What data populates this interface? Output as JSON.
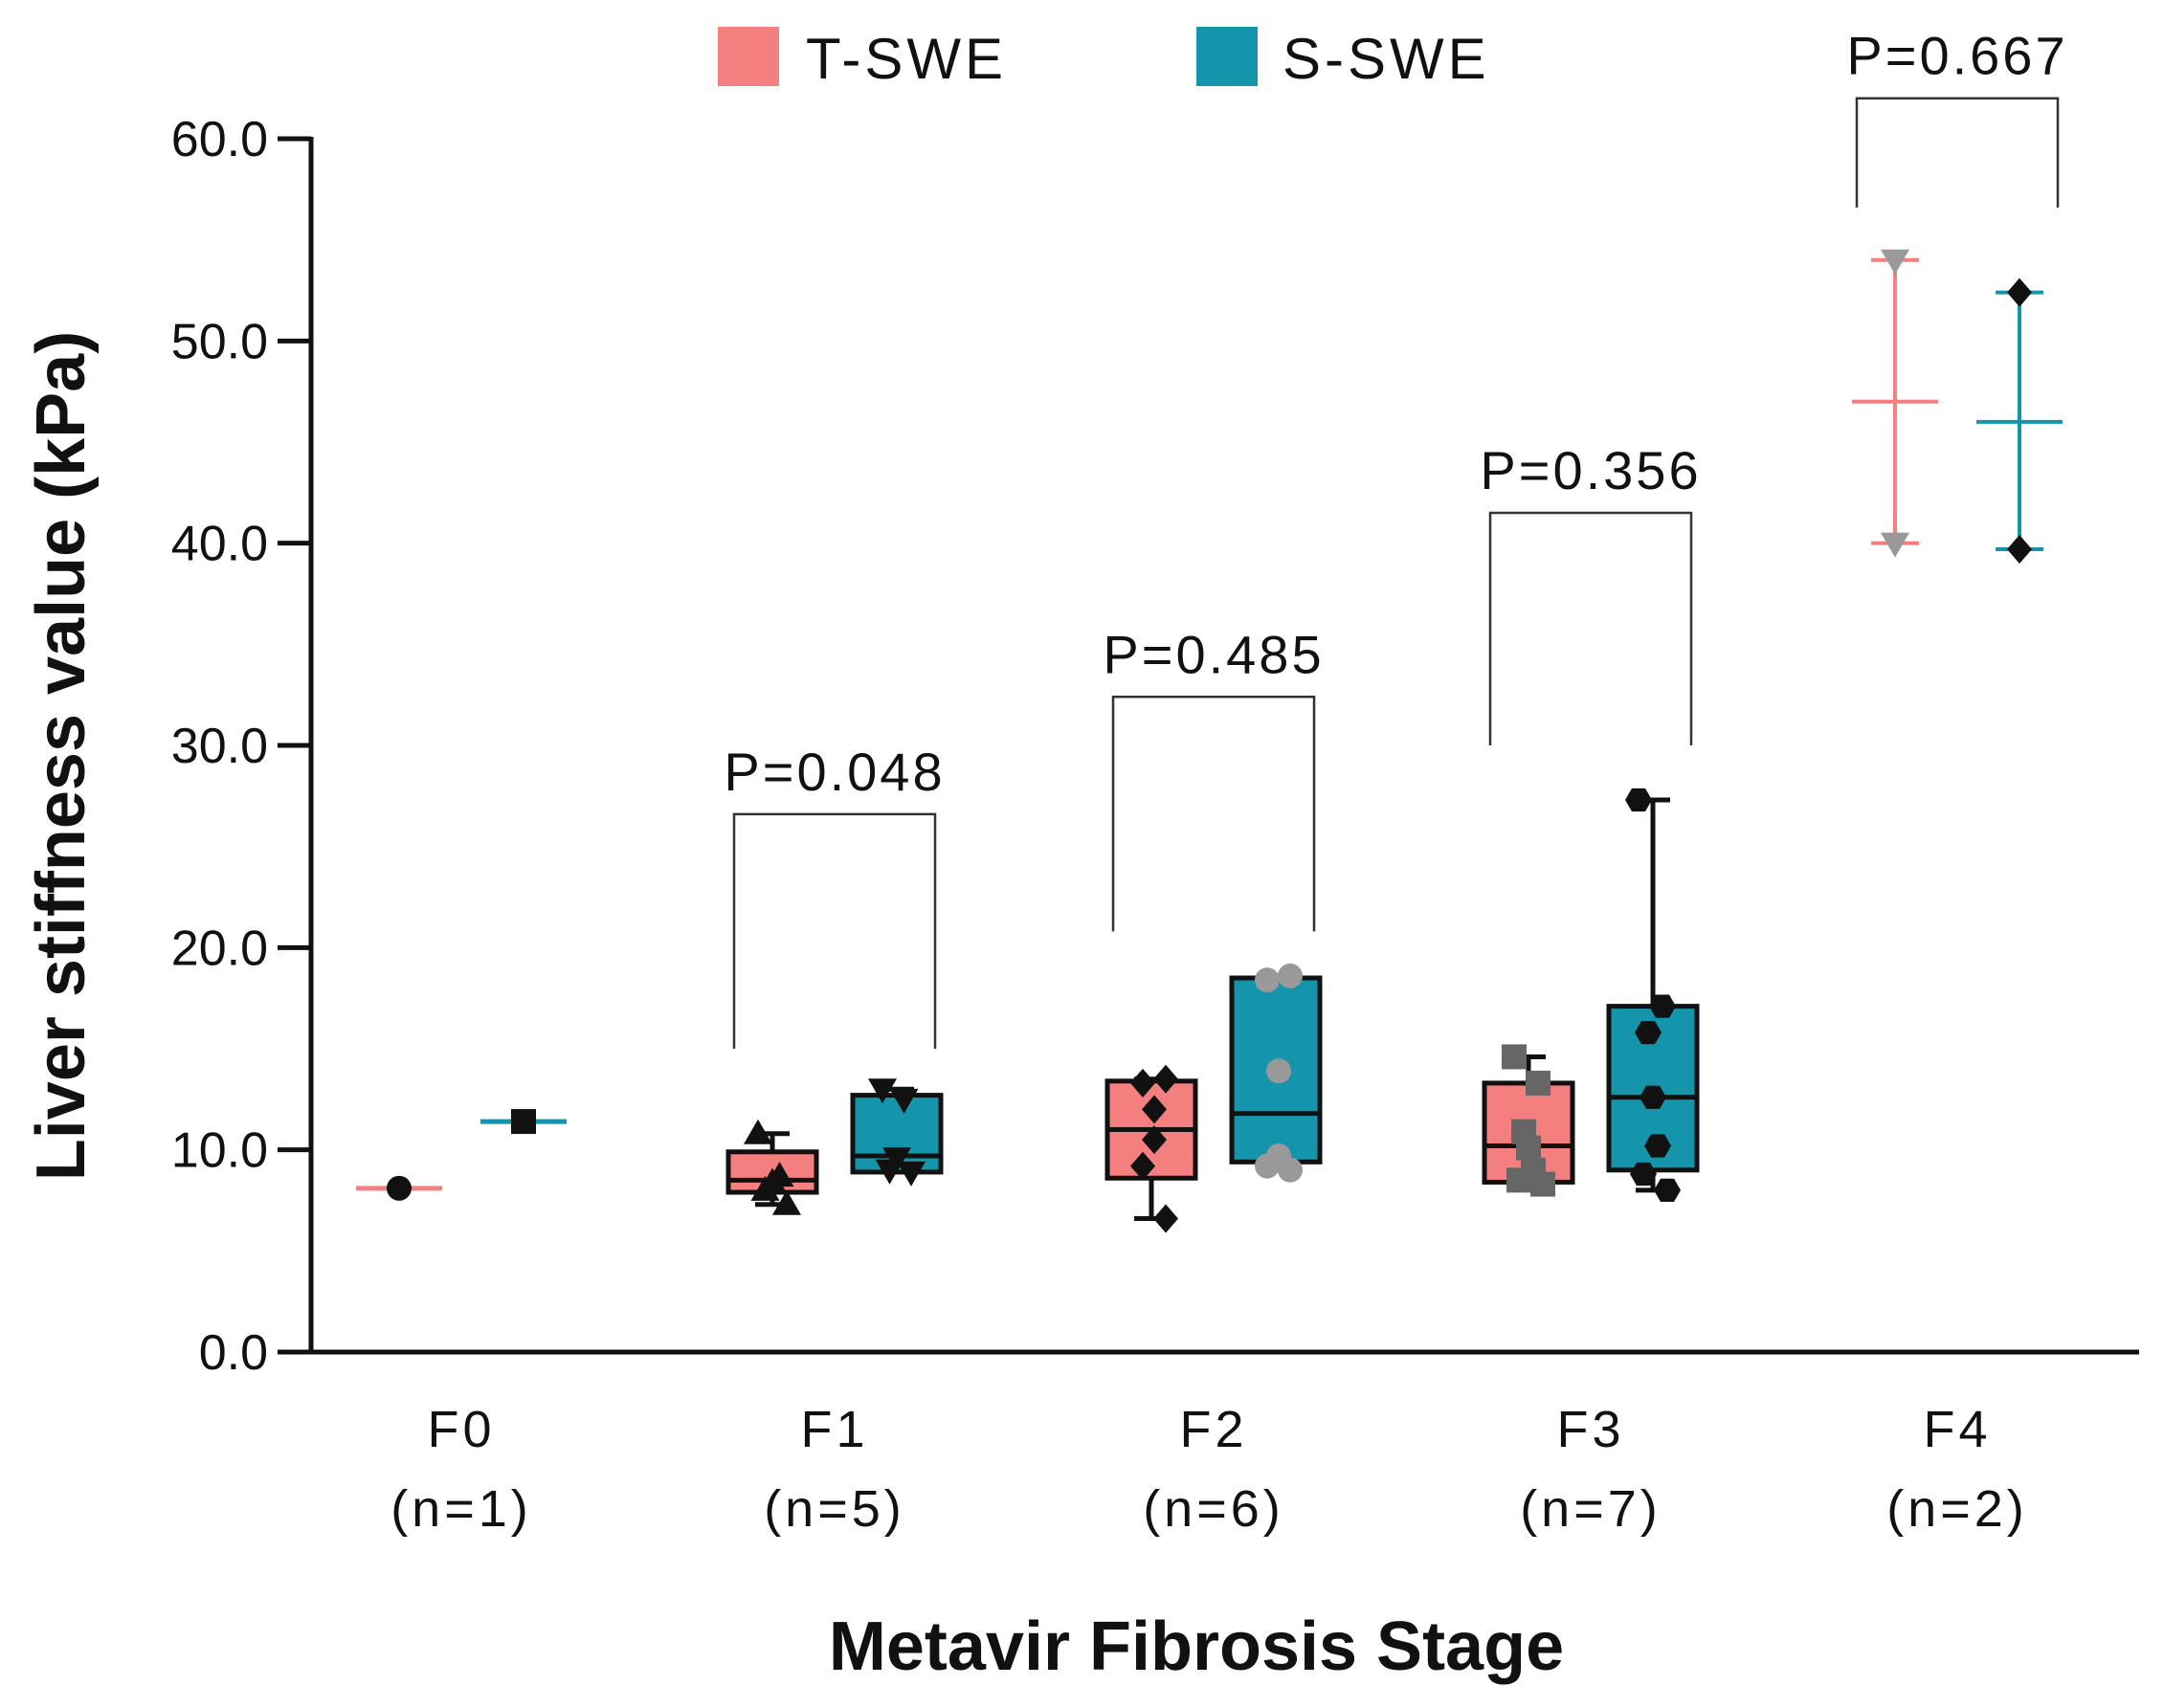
{
  "chart_data": {
    "type": "box",
    "title": "",
    "xlabel": "Metavir Fibrosis Stage",
    "ylabel": "Liver stiffness value (kPa)",
    "ylim": [
      0,
      60
    ],
    "yticks": [
      "0.0",
      "10.0",
      "20.0",
      "30.0",
      "40.0",
      "50.0",
      "60.0"
    ],
    "ytick_values": [
      0,
      10,
      20,
      30,
      40,
      50,
      60
    ],
    "categories": [
      {
        "stage": "F0",
        "n": "(n=1)"
      },
      {
        "stage": "F1",
        "n": "(n=5)"
      },
      {
        "stage": "F2",
        "n": "(n=6)"
      },
      {
        "stage": "F3",
        "n": "(n=7)"
      },
      {
        "stage": "F4",
        "n": "(n=2)"
      }
    ],
    "legend": [
      {
        "label": "T-SWE",
        "color": "#F47F7F"
      },
      {
        "label": "S-SWE",
        "color": "#1495AC"
      }
    ],
    "series": [
      {
        "name": "T-SWE",
        "color": "#F47F7F",
        "groups": [
          {
            "kind": "single",
            "median": 8.1,
            "points": [
              8.1
            ],
            "marker": "circle",
            "pointColor": "#111111"
          },
          {
            "kind": "box",
            "min": 7.3,
            "q1": 7.9,
            "median": 8.5,
            "q3": 9.9,
            "max": 10.8,
            "points": [
              7.3,
              8.0,
              8.4,
              8.7,
              10.8
            ],
            "marker": "triangle-up",
            "pointColor": "#111111"
          },
          {
            "kind": "box",
            "min": 6.6,
            "q1": 8.6,
            "median": 11.0,
            "q3": 13.4,
            "max": 13.5,
            "points": [
              6.6,
              9.2,
              10.5,
              12.0,
              13.3,
              13.5
            ],
            "marker": "diamond",
            "pointColor": "#111111"
          },
          {
            "kind": "box",
            "min": 8.3,
            "q1": 8.4,
            "median": 10.2,
            "q3": 13.3,
            "max": 14.6,
            "points": [
              8.3,
              8.5,
              9.0,
              10.1,
              10.9,
              13.3,
              14.6
            ],
            "marker": "square",
            "pointColor": "#666666"
          },
          {
            "kind": "meanrange",
            "median": 47.0,
            "min": 40.0,
            "max": 54.0,
            "points": [
              40.0,
              54.0
            ],
            "marker": "triangle-down",
            "pointColor": "#999999"
          }
        ]
      },
      {
        "name": "S-SWE",
        "color": "#1495AC",
        "groups": [
          {
            "kind": "single",
            "median": 11.4,
            "points": [
              11.4
            ],
            "marker": "square",
            "pointColor": "#111111"
          },
          {
            "kind": "box",
            "min": 8.9,
            "q1": 8.9,
            "median": 9.7,
            "q3": 12.7,
            "max": 13.0,
            "points": [
              8.9,
              9.0,
              9.6,
              12.5,
              13.0
            ],
            "marker": "triangle-down",
            "pointColor": "#111111"
          },
          {
            "kind": "box",
            "min": 9.0,
            "q1": 9.4,
            "median": 11.8,
            "q3": 18.5,
            "max": 18.6,
            "points": [
              9.0,
              9.2,
              9.7,
              13.9,
              18.4,
              18.6
            ],
            "marker": "circle",
            "pointColor": "#999999"
          },
          {
            "kind": "box",
            "min": 8.0,
            "q1": 9.0,
            "median": 12.6,
            "q3": 17.1,
            "max": 27.3,
            "points": [
              8.0,
              8.8,
              10.2,
              12.6,
              15.8,
              17.1,
              27.3
            ],
            "marker": "hexagon",
            "pointColor": "#111111"
          },
          {
            "kind": "meanrange",
            "median": 46.0,
            "min": 39.7,
            "max": 52.4,
            "points": [
              39.7,
              52.4
            ],
            "marker": "diamond",
            "pointColor": "#111111"
          }
        ]
      }
    ],
    "comparisons": [
      {
        "category": 1,
        "label": "P=0.048",
        "left_start": 15.0,
        "right_start": 15.0,
        "top": 26.6
      },
      {
        "category": 2,
        "label": "P=0.485",
        "left_start": 20.8,
        "right_start": 20.8,
        "top": 32.4
      },
      {
        "category": 3,
        "label": "P=0.356",
        "left_start": 30.0,
        "right_start": 30.0,
        "top": 41.5
      },
      {
        "category": 4,
        "label": "P=0.667",
        "left_start": 56.6,
        "right_start": 56.6,
        "top": 62.0
      }
    ]
  }
}
